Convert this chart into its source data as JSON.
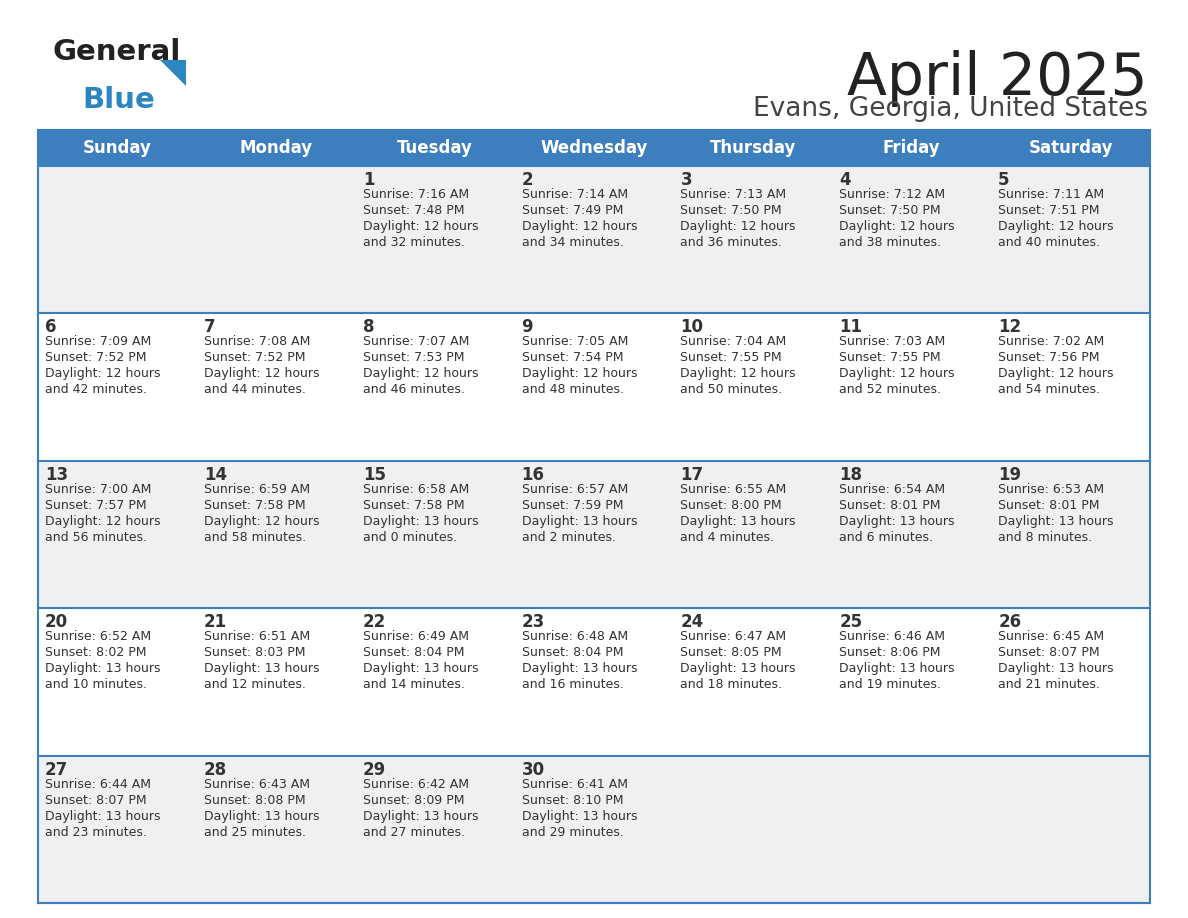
{
  "title": "April 2025",
  "subtitle": "Evans, Georgia, United States",
  "header_bg": "#3d7ebf",
  "header_text_color": "#ffffff",
  "cell_bg_odd": "#f0f0f0",
  "cell_bg_even": "#ffffff",
  "day_headers": [
    "Sunday",
    "Monday",
    "Tuesday",
    "Wednesday",
    "Thursday",
    "Friday",
    "Saturday"
  ],
  "weeks": [
    [
      {
        "day": "",
        "sunrise": "",
        "sunset": "",
        "daylight": ""
      },
      {
        "day": "",
        "sunrise": "",
        "sunset": "",
        "daylight": ""
      },
      {
        "day": "1",
        "sunrise": "Sunrise: 7:16 AM",
        "sunset": "Sunset: 7:48 PM",
        "daylight": "Daylight: 12 hours\nand 32 minutes."
      },
      {
        "day": "2",
        "sunrise": "Sunrise: 7:14 AM",
        "sunset": "Sunset: 7:49 PM",
        "daylight": "Daylight: 12 hours\nand 34 minutes."
      },
      {
        "day": "3",
        "sunrise": "Sunrise: 7:13 AM",
        "sunset": "Sunset: 7:50 PM",
        "daylight": "Daylight: 12 hours\nand 36 minutes."
      },
      {
        "day": "4",
        "sunrise": "Sunrise: 7:12 AM",
        "sunset": "Sunset: 7:50 PM",
        "daylight": "Daylight: 12 hours\nand 38 minutes."
      },
      {
        "day": "5",
        "sunrise": "Sunrise: 7:11 AM",
        "sunset": "Sunset: 7:51 PM",
        "daylight": "Daylight: 12 hours\nand 40 minutes."
      }
    ],
    [
      {
        "day": "6",
        "sunrise": "Sunrise: 7:09 AM",
        "sunset": "Sunset: 7:52 PM",
        "daylight": "Daylight: 12 hours\nand 42 minutes."
      },
      {
        "day": "7",
        "sunrise": "Sunrise: 7:08 AM",
        "sunset": "Sunset: 7:52 PM",
        "daylight": "Daylight: 12 hours\nand 44 minutes."
      },
      {
        "day": "8",
        "sunrise": "Sunrise: 7:07 AM",
        "sunset": "Sunset: 7:53 PM",
        "daylight": "Daylight: 12 hours\nand 46 minutes."
      },
      {
        "day": "9",
        "sunrise": "Sunrise: 7:05 AM",
        "sunset": "Sunset: 7:54 PM",
        "daylight": "Daylight: 12 hours\nand 48 minutes."
      },
      {
        "day": "10",
        "sunrise": "Sunrise: 7:04 AM",
        "sunset": "Sunset: 7:55 PM",
        "daylight": "Daylight: 12 hours\nand 50 minutes."
      },
      {
        "day": "11",
        "sunrise": "Sunrise: 7:03 AM",
        "sunset": "Sunset: 7:55 PM",
        "daylight": "Daylight: 12 hours\nand 52 minutes."
      },
      {
        "day": "12",
        "sunrise": "Sunrise: 7:02 AM",
        "sunset": "Sunset: 7:56 PM",
        "daylight": "Daylight: 12 hours\nand 54 minutes."
      }
    ],
    [
      {
        "day": "13",
        "sunrise": "Sunrise: 7:00 AM",
        "sunset": "Sunset: 7:57 PM",
        "daylight": "Daylight: 12 hours\nand 56 minutes."
      },
      {
        "day": "14",
        "sunrise": "Sunrise: 6:59 AM",
        "sunset": "Sunset: 7:58 PM",
        "daylight": "Daylight: 12 hours\nand 58 minutes."
      },
      {
        "day": "15",
        "sunrise": "Sunrise: 6:58 AM",
        "sunset": "Sunset: 7:58 PM",
        "daylight": "Daylight: 13 hours\nand 0 minutes."
      },
      {
        "day": "16",
        "sunrise": "Sunrise: 6:57 AM",
        "sunset": "Sunset: 7:59 PM",
        "daylight": "Daylight: 13 hours\nand 2 minutes."
      },
      {
        "day": "17",
        "sunrise": "Sunrise: 6:55 AM",
        "sunset": "Sunset: 8:00 PM",
        "daylight": "Daylight: 13 hours\nand 4 minutes."
      },
      {
        "day": "18",
        "sunrise": "Sunrise: 6:54 AM",
        "sunset": "Sunset: 8:01 PM",
        "daylight": "Daylight: 13 hours\nand 6 minutes."
      },
      {
        "day": "19",
        "sunrise": "Sunrise: 6:53 AM",
        "sunset": "Sunset: 8:01 PM",
        "daylight": "Daylight: 13 hours\nand 8 minutes."
      }
    ],
    [
      {
        "day": "20",
        "sunrise": "Sunrise: 6:52 AM",
        "sunset": "Sunset: 8:02 PM",
        "daylight": "Daylight: 13 hours\nand 10 minutes."
      },
      {
        "day": "21",
        "sunrise": "Sunrise: 6:51 AM",
        "sunset": "Sunset: 8:03 PM",
        "daylight": "Daylight: 13 hours\nand 12 minutes."
      },
      {
        "day": "22",
        "sunrise": "Sunrise: 6:49 AM",
        "sunset": "Sunset: 8:04 PM",
        "daylight": "Daylight: 13 hours\nand 14 minutes."
      },
      {
        "day": "23",
        "sunrise": "Sunrise: 6:48 AM",
        "sunset": "Sunset: 8:04 PM",
        "daylight": "Daylight: 13 hours\nand 16 minutes."
      },
      {
        "day": "24",
        "sunrise": "Sunrise: 6:47 AM",
        "sunset": "Sunset: 8:05 PM",
        "daylight": "Daylight: 13 hours\nand 18 minutes."
      },
      {
        "day": "25",
        "sunrise": "Sunrise: 6:46 AM",
        "sunset": "Sunset: 8:06 PM",
        "daylight": "Daylight: 13 hours\nand 19 minutes."
      },
      {
        "day": "26",
        "sunrise": "Sunrise: 6:45 AM",
        "sunset": "Sunset: 8:07 PM",
        "daylight": "Daylight: 13 hours\nand 21 minutes."
      }
    ],
    [
      {
        "day": "27",
        "sunrise": "Sunrise: 6:44 AM",
        "sunset": "Sunset: 8:07 PM",
        "daylight": "Daylight: 13 hours\nand 23 minutes."
      },
      {
        "day": "28",
        "sunrise": "Sunrise: 6:43 AM",
        "sunset": "Sunset: 8:08 PM",
        "daylight": "Daylight: 13 hours\nand 25 minutes."
      },
      {
        "day": "29",
        "sunrise": "Sunrise: 6:42 AM",
        "sunset": "Sunset: 8:09 PM",
        "daylight": "Daylight: 13 hours\nand 27 minutes."
      },
      {
        "day": "30",
        "sunrise": "Sunrise: 6:41 AM",
        "sunset": "Sunset: 8:10 PM",
        "daylight": "Daylight: 13 hours\nand 29 minutes."
      },
      {
        "day": "",
        "sunrise": "",
        "sunset": "",
        "daylight": ""
      },
      {
        "day": "",
        "sunrise": "",
        "sunset": "",
        "daylight": ""
      },
      {
        "day": "",
        "sunrise": "",
        "sunset": "",
        "daylight": ""
      }
    ]
  ],
  "logo_color_general": "#222222",
  "logo_color_blue": "#2e86c1",
  "divider_color": "#3d7ebf",
  "text_color": "#333333",
  "title_color": "#222222",
  "subtitle_color": "#444444"
}
